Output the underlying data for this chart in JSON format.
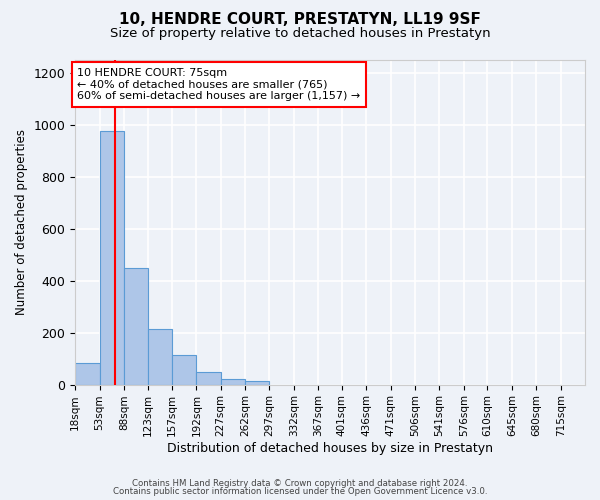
{
  "title": "10, HENDRE COURT, PRESTATYN, LL19 9SF",
  "subtitle": "Size of property relative to detached houses in Prestatyn",
  "xlabel": "Distribution of detached houses by size in Prestatyn",
  "ylabel": "Number of detached properties",
  "bar_values": [
    85,
    975,
    450,
    215,
    115,
    50,
    20,
    15,
    0,
    0,
    0,
    0,
    0,
    0,
    0,
    0,
    0,
    0,
    0,
    0,
    0
  ],
  "bin_labels": [
    "18sqm",
    "53sqm",
    "88sqm",
    "123sqm",
    "157sqm",
    "192sqm",
    "227sqm",
    "262sqm",
    "297sqm",
    "332sqm",
    "367sqm",
    "401sqm",
    "436sqm",
    "471sqm",
    "506sqm",
    "541sqm",
    "576sqm",
    "610sqm",
    "645sqm",
    "680sqm",
    "715sqm"
  ],
  "bar_color": "#aec6e8",
  "bar_edge_color": "#5b9bd5",
  "property_size": 75,
  "property_label": "10 HENDRE COURT: 75sqm",
  "annotation_line1": "← 40% of detached houses are smaller (765)",
  "annotation_line2": "60% of semi-detached houses are larger (1,157) →",
  "ylim": [
    0,
    1250
  ],
  "yticks": [
    0,
    200,
    400,
    600,
    800,
    1000,
    1200
  ],
  "footer1": "Contains HM Land Registry data © Crown copyright and database right 2024.",
  "footer2": "Contains public sector information licensed under the Open Government Licence v3.0.",
  "background_color": "#eef2f8",
  "grid_color": "#ffffff",
  "bin_edges": [
    18,
    53,
    88,
    123,
    157,
    192,
    227,
    262,
    297,
    332,
    367,
    401,
    436,
    471,
    506,
    541,
    576,
    610,
    645,
    680,
    715,
    750
  ]
}
